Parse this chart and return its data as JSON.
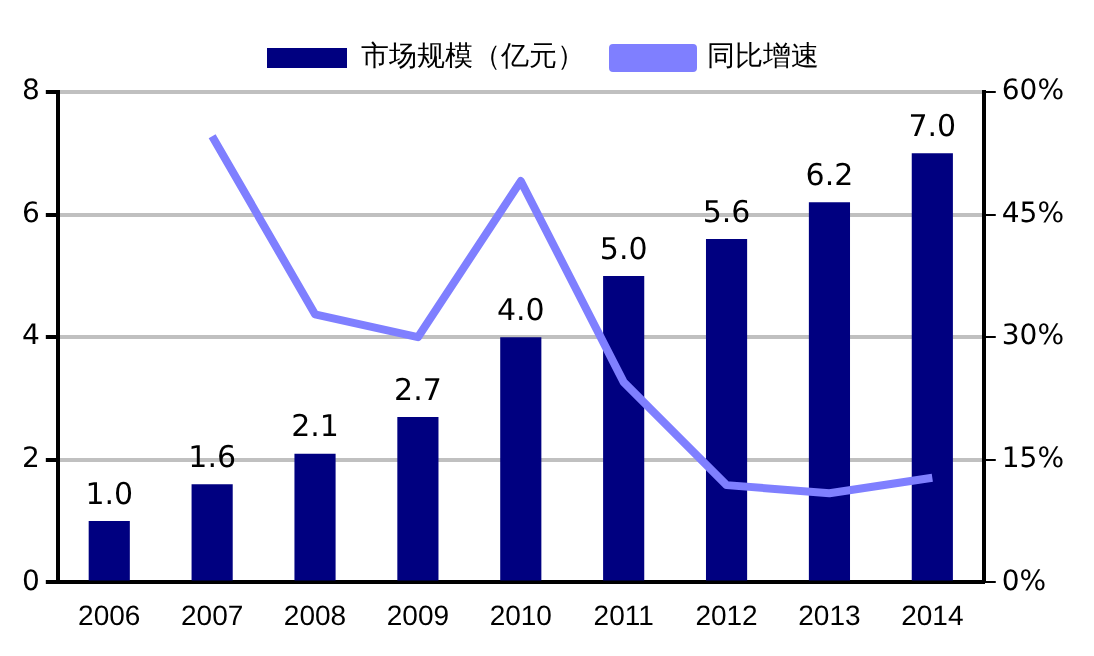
{
  "chart_data": {
    "type": "bar",
    "categories": [
      "2006",
      "2007",
      "2008",
      "2009",
      "2010",
      "2011",
      "2012",
      "2013",
      "2014"
    ],
    "series": [
      {
        "name": "市场规模（亿元）",
        "color": "#000080",
        "values": [
          1.0,
          1.6,
          2.1,
          2.7,
          4.0,
          5.0,
          5.6,
          6.2,
          7.0
        ],
        "value_labels": [
          "1.0",
          "1.6",
          "2.1",
          "2.7",
          "4.0",
          "5.0",
          "5.6",
          "6.2",
          "7.0"
        ]
      },
      {
        "name": "同比增速",
        "type": "line",
        "axis": "y2",
        "color": "#7f7fff",
        "values": [
          null,
          54.6,
          32.8,
          30.0,
          49.1,
          24.5,
          11.9,
          10.9,
          12.8
        ]
      }
    ],
    "ylim": [
      0,
      8
    ],
    "yticks": [
      0,
      2,
      4,
      6,
      8
    ],
    "y2lim": [
      0,
      60
    ],
    "y2ticks": [
      {
        "value": 0,
        "label": "0%"
      },
      {
        "value": 15,
        "label": "15%"
      },
      {
        "value": 30,
        "label": "30%"
      },
      {
        "value": 45,
        "label": "45%"
      },
      {
        "value": 60,
        "label": "60%"
      }
    ],
    "grid": "y",
    "legend": "top",
    "marker": "none"
  }
}
